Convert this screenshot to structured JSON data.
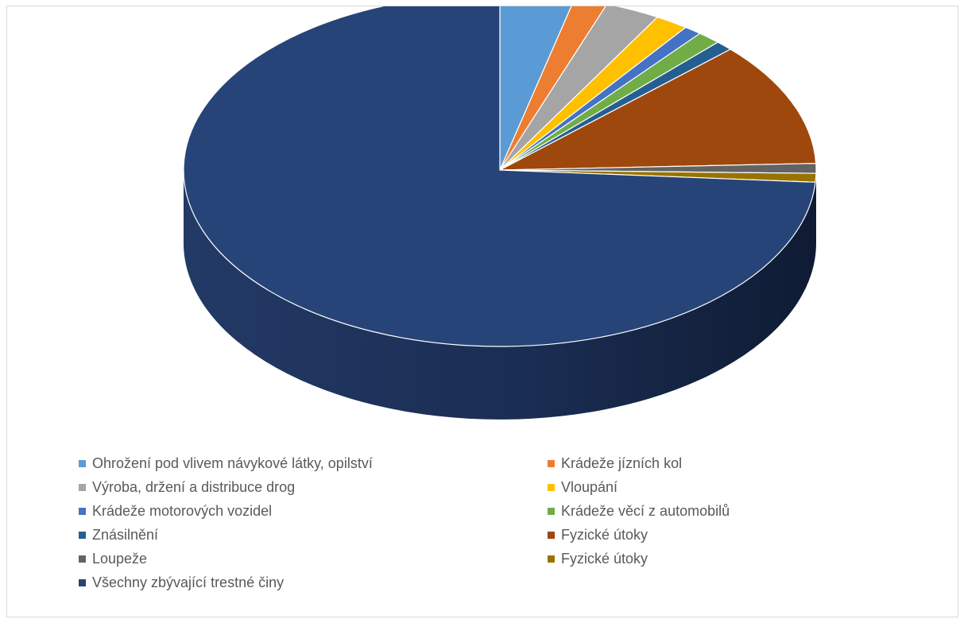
{
  "chart_data": {
    "type": "pie",
    "style": "3d",
    "title": "",
    "legend_position": "bottom",
    "slices": [
      {
        "label": "Ohrožení pod vlivem návykové látky, opilství",
        "value": 3.8,
        "color": "#5b9bd5"
      },
      {
        "label": "Krádeže jízních kol",
        "value": 1.7,
        "color": "#ed7d31"
      },
      {
        "label": "Výroba, držení a distribuce drog",
        "value": 2.8,
        "color": "#a5a5a5"
      },
      {
        "label": "Vloupání",
        "value": 1.7,
        "color": "#ffc000"
      },
      {
        "label": "Krádeže motorových vozidel",
        "value": 0.9,
        "color": "#4472c4"
      },
      {
        "label": "Krádeže věcí z automobilů",
        "value": 1.2,
        "color": "#70ad47"
      },
      {
        "label": "Znásilnění",
        "value": 0.9,
        "color": "#255e91"
      },
      {
        "label": "Fyzické útoky",
        "value": 11.4,
        "color": "#9e480e"
      },
      {
        "label": "Loupeže",
        "value": 0.9,
        "color": "#636363"
      },
      {
        "label": "Fyzické útoky",
        "value": 0.8,
        "color": "#997300"
      },
      {
        "label": "Všechny zbývající trestné činy",
        "value": 73.9,
        "color": "#264478"
      }
    ]
  }
}
